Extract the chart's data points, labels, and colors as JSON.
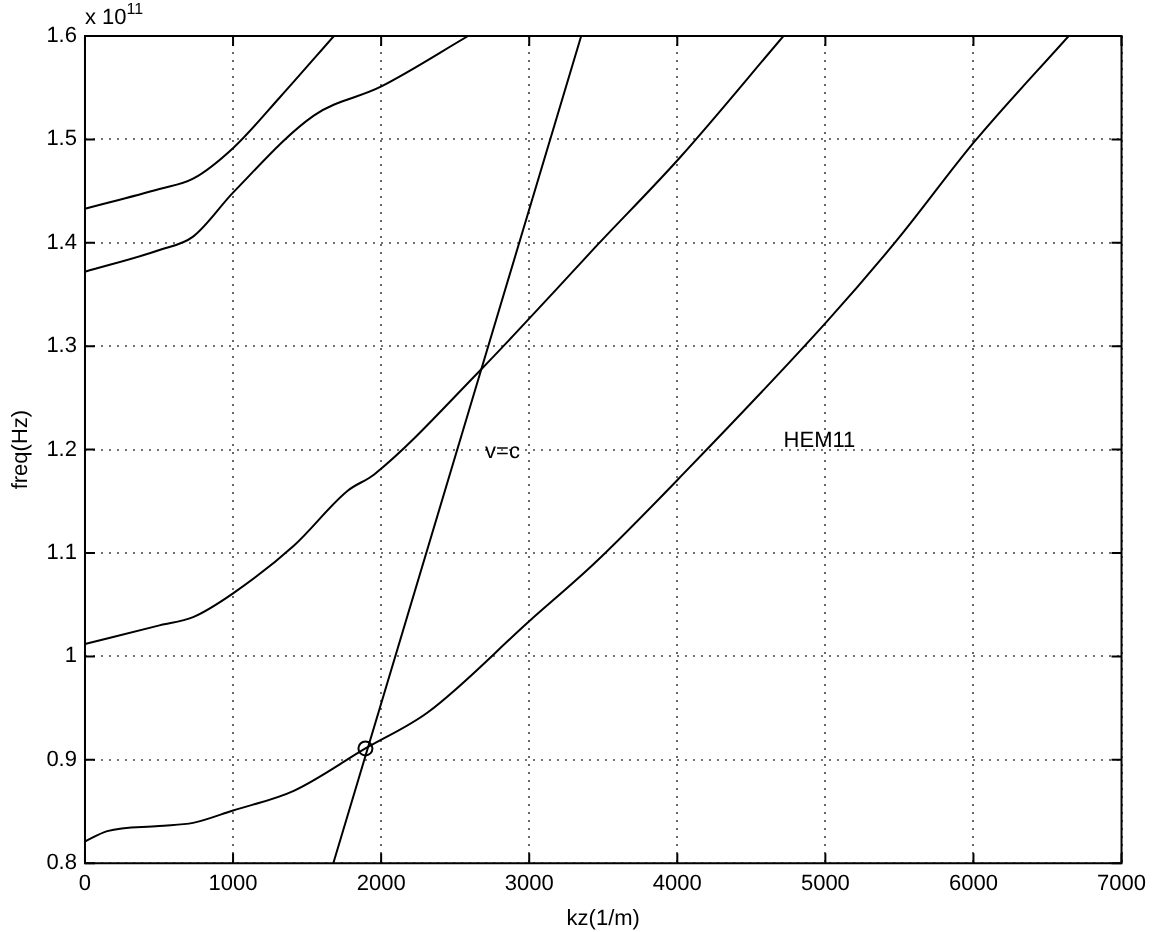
{
  "chart_data": {
    "type": "line",
    "xlabel": "kz(1/m)",
    "ylabel": "freq(Hz)",
    "xlim": [
      0,
      7000
    ],
    "xticks": [
      0,
      1000,
      2000,
      3000,
      4000,
      5000,
      6000,
      7000
    ],
    "ylim": [
      0.8,
      1.6
    ],
    "yticks": [
      0.8,
      0.9,
      1,
      1.1,
      1.2,
      1.3,
      1.4,
      1.5,
      1.6
    ],
    "grid": true,
    "legend": false,
    "marker": "none",
    "line_style": "solid",
    "series": [
      {
        "color": "#000000",
        "x": [
          0,
          150,
          500,
          730,
          1000,
          1410,
          1894,
          2316,
          3000,
          3448,
          4037,
          5011,
          5486,
          6008,
          6643
        ],
        "values": [
          0.821,
          0.831,
          0.836,
          0.839,
          0.851,
          0.87,
          0.911,
          0.946,
          1.034,
          1.091,
          1.176,
          1.324,
          1.403,
          1.498,
          1.6
        ]
      },
      {
        "color": "#000000",
        "x": [
          0,
          503,
          730,
          1000,
          1410,
          1772,
          1953,
          2678,
          3177,
          3448,
          4015,
          4717
        ],
        "values": [
          1.012,
          1.03,
          1.038,
          1.061,
          1.107,
          1.16,
          1.176,
          1.278,
          1.354,
          1.396,
          1.482,
          1.6
        ]
      },
      {
        "color": "#000000",
        "x": [
          0,
          503,
          730,
          1003,
          1545,
          1998,
          2588
        ],
        "values": [
          1.372,
          1.393,
          1.406,
          1.449,
          1.523,
          1.551,
          1.6
        ]
      },
      {
        "color": "#000000",
        "x": [
          0,
          503,
          730,
          1003,
          1318,
          1681
        ],
        "values": [
          1.433,
          1.452,
          1.462,
          1.492,
          1.541,
          1.6
        ]
      },
      {
        "color": "#000000",
        "x": [
          1677,
          3351
        ],
        "values": [
          0.8,
          1.6
        ]
      },
      {
        "type": "scatter",
        "marker": "circle",
        "color": "#000000",
        "x": [
          1894
        ],
        "values": [
          0.911
        ]
      }
    ],
    "annotations": [
      "x 10$^{11}$",
      "v=c",
      "HEM11"
    ]
  }
}
